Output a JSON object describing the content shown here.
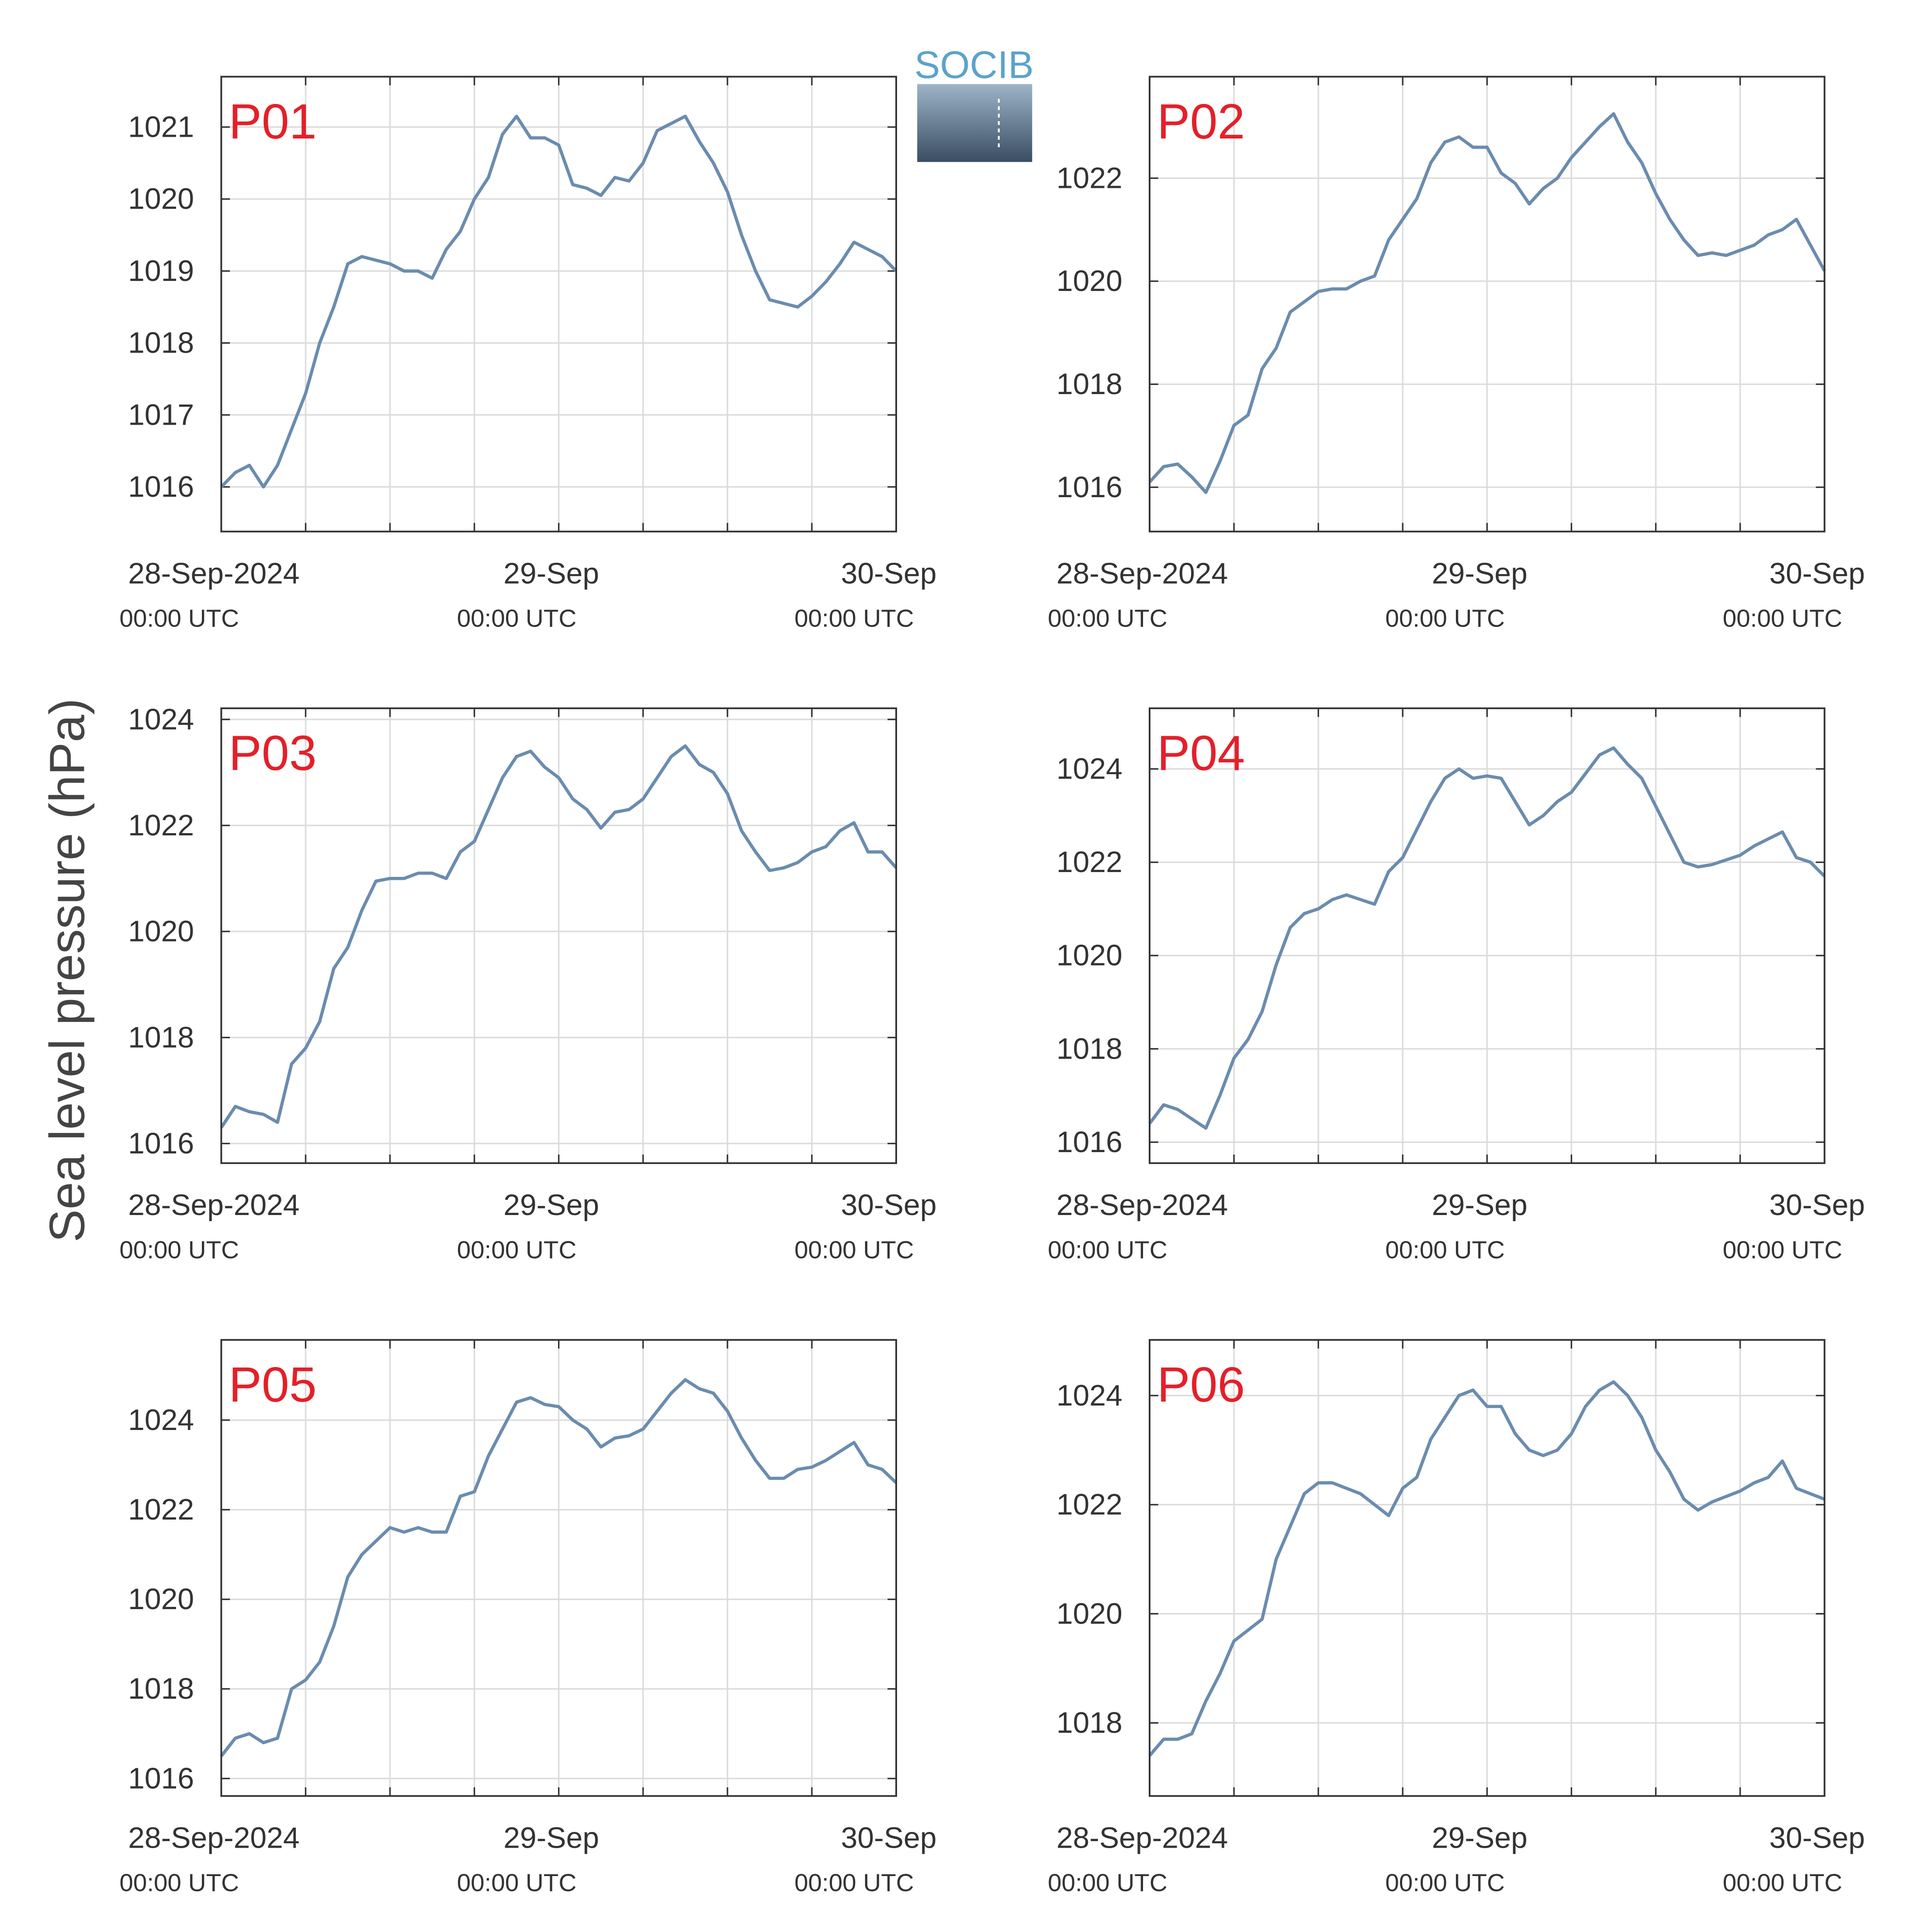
{
  "ylabel": "Sea level pressure (hPa)",
  "logo": "SOCIB",
  "chart_data": [
    {
      "type": "line",
      "title": "P01",
      "color": "#6b8cae",
      "grid": true,
      "x": [
        "2024-09-28T00:00",
        "2024-09-28T01:00",
        "2024-09-28T02:00",
        "2024-09-28T03:00",
        "2024-09-28T04:00",
        "2024-09-28T05:00",
        "2024-09-28T06:00",
        "2024-09-28T07:00",
        "2024-09-28T08:00",
        "2024-09-28T09:00",
        "2024-09-28T10:00",
        "2024-09-28T11:00",
        "2024-09-28T12:00",
        "2024-09-28T13:00",
        "2024-09-28T14:00",
        "2024-09-28T15:00",
        "2024-09-28T16:00",
        "2024-09-28T17:00",
        "2024-09-28T18:00",
        "2024-09-28T19:00",
        "2024-09-28T20:00",
        "2024-09-28T21:00",
        "2024-09-28T22:00",
        "2024-09-28T23:00",
        "2024-09-29T00:00",
        "2024-09-29T01:00",
        "2024-09-29T02:00",
        "2024-09-29T03:00",
        "2024-09-29T04:00",
        "2024-09-29T05:00",
        "2024-09-29T06:00",
        "2024-09-29T07:00",
        "2024-09-29T08:00",
        "2024-09-29T09:00",
        "2024-09-29T10:00",
        "2024-09-29T11:00",
        "2024-09-29T12:00",
        "2024-09-29T13:00",
        "2024-09-29T14:00",
        "2024-09-29T15:00",
        "2024-09-29T16:00",
        "2024-09-29T17:00",
        "2024-09-29T18:00",
        "2024-09-29T19:00",
        "2024-09-29T20:00",
        "2024-09-29T21:00",
        "2024-09-29T22:00",
        "2024-09-29T23:00",
        "2024-09-30T00:00"
      ],
      "values": [
        1016.0,
        1016.2,
        1016.3,
        1016.0,
        1016.3,
        1016.8,
        1017.3,
        1018.0,
        1018.5,
        1019.1,
        1019.2,
        1019.15,
        1019.1,
        1019.0,
        1019.0,
        1018.9,
        1019.3,
        1019.55,
        1020.0,
        1020.3,
        1020.9,
        1021.15,
        1020.85,
        1020.85,
        1020.75,
        1020.2,
        1020.15,
        1020.05,
        1020.3,
        1020.25,
        1020.5,
        1020.95,
        1021.05,
        1021.15,
        1020.8,
        1020.5,
        1020.1,
        1019.5,
        1019.0,
        1018.6,
        1018.55,
        1018.5,
        1018.65,
        1018.85,
        1019.1,
        1019.4,
        1019.3,
        1019.2,
        1019.0
      ],
      "xlim": [
        "2024-09-28T00:00",
        "2024-09-30T00:00"
      ],
      "xticks": [
        {
          "value": "2024-09-28T00:00",
          "label": "28-Sep-2024",
          "sublabel": "00:00 UTC"
        },
        {
          "value": "2024-09-29T00:00",
          "label": "29-Sep",
          "sublabel": "00:00 UTC"
        },
        {
          "value": "2024-09-30T00:00",
          "label": "30-Sep",
          "sublabel": "00:00 UTC"
        }
      ],
      "xminor_ticks": [
        "2024-09-28T06:00",
        "2024-09-28T12:00",
        "2024-09-28T18:00",
        "2024-09-29T06:00",
        "2024-09-29T12:00",
        "2024-09-29T18:00"
      ],
      "ylim": [
        1015.38,
        1021.7
      ],
      "yticks": [
        1016,
        1017,
        1018,
        1019,
        1020,
        1021
      ]
    },
    {
      "type": "line",
      "title": "P02",
      "color": "#6b8cae",
      "grid": true,
      "x": [
        "2024-09-28T00:00",
        "2024-09-28T01:00",
        "2024-09-28T02:00",
        "2024-09-28T03:00",
        "2024-09-28T04:00",
        "2024-09-28T05:00",
        "2024-09-28T06:00",
        "2024-09-28T07:00",
        "2024-09-28T08:00",
        "2024-09-28T09:00",
        "2024-09-28T10:00",
        "2024-09-28T11:00",
        "2024-09-28T12:00",
        "2024-09-28T13:00",
        "2024-09-28T14:00",
        "2024-09-28T15:00",
        "2024-09-28T16:00",
        "2024-09-28T17:00",
        "2024-09-28T18:00",
        "2024-09-28T19:00",
        "2024-09-28T20:00",
        "2024-09-28T21:00",
        "2024-09-28T22:00",
        "2024-09-28T23:00",
        "2024-09-29T00:00",
        "2024-09-29T01:00",
        "2024-09-29T02:00",
        "2024-09-29T03:00",
        "2024-09-29T04:00",
        "2024-09-29T05:00",
        "2024-09-29T06:00",
        "2024-09-29T07:00",
        "2024-09-29T08:00",
        "2024-09-29T09:00",
        "2024-09-29T10:00",
        "2024-09-29T11:00",
        "2024-09-29T12:00",
        "2024-09-29T13:00",
        "2024-09-29T14:00",
        "2024-09-29T15:00",
        "2024-09-29T16:00",
        "2024-09-29T17:00",
        "2024-09-29T18:00",
        "2024-09-29T19:00",
        "2024-09-29T20:00",
        "2024-09-29T21:00",
        "2024-09-29T22:00",
        "2024-09-29T23:00",
        "2024-09-30T00:00"
      ],
      "values": [
        1016.1,
        1016.4,
        1016.45,
        1016.2,
        1015.9,
        1016.5,
        1017.2,
        1017.4,
        1018.3,
        1018.7,
        1019.4,
        1019.6,
        1019.8,
        1019.85,
        1019.85,
        1020.0,
        1020.1,
        1020.8,
        1021.2,
        1021.6,
        1022.3,
        1022.7,
        1022.8,
        1022.6,
        1022.6,
        1022.1,
        1021.9,
        1021.5,
        1021.8,
        1022.0,
        1022.4,
        1022.7,
        1023.0,
        1023.25,
        1022.7,
        1022.3,
        1021.7,
        1021.2,
        1020.8,
        1020.5,
        1020.55,
        1020.5,
        1020.6,
        1020.7,
        1020.9,
        1021.0,
        1021.2,
        1020.7,
        1020.2
      ],
      "xlim": [
        "2024-09-28T00:00",
        "2024-09-30T00:00"
      ],
      "xticks": [
        {
          "value": "2024-09-28T00:00",
          "label": "28-Sep-2024",
          "sublabel": "00:00 UTC"
        },
        {
          "value": "2024-09-29T00:00",
          "label": "29-Sep",
          "sublabel": "00:00 UTC"
        },
        {
          "value": "2024-09-30T00:00",
          "label": "30-Sep",
          "sublabel": "00:00 UTC"
        }
      ],
      "xminor_ticks": [
        "2024-09-28T06:00",
        "2024-09-28T12:00",
        "2024-09-28T18:00",
        "2024-09-29T06:00",
        "2024-09-29T12:00",
        "2024-09-29T18:00"
      ],
      "ylim": [
        1015.14,
        1023.97
      ],
      "yticks": [
        1016,
        1018,
        1020,
        1022
      ]
    },
    {
      "type": "line",
      "title": "P03",
      "color": "#6b8cae",
      "grid": true,
      "x": [
        "2024-09-28T00:00",
        "2024-09-28T01:00",
        "2024-09-28T02:00",
        "2024-09-28T03:00",
        "2024-09-28T04:00",
        "2024-09-28T05:00",
        "2024-09-28T06:00",
        "2024-09-28T07:00",
        "2024-09-28T08:00",
        "2024-09-28T09:00",
        "2024-09-28T10:00",
        "2024-09-28T11:00",
        "2024-09-28T12:00",
        "2024-09-28T13:00",
        "2024-09-28T14:00",
        "2024-09-28T15:00",
        "2024-09-28T16:00",
        "2024-09-28T17:00",
        "2024-09-28T18:00",
        "2024-09-28T19:00",
        "2024-09-28T20:00",
        "2024-09-28T21:00",
        "2024-09-28T22:00",
        "2024-09-28T23:00",
        "2024-09-29T00:00",
        "2024-09-29T01:00",
        "2024-09-29T02:00",
        "2024-09-29T03:00",
        "2024-09-29T04:00",
        "2024-09-29T05:00",
        "2024-09-29T06:00",
        "2024-09-29T07:00",
        "2024-09-29T08:00",
        "2024-09-29T09:00",
        "2024-09-29T10:00",
        "2024-09-29T11:00",
        "2024-09-29T12:00",
        "2024-09-29T13:00",
        "2024-09-29T14:00",
        "2024-09-29T15:00",
        "2024-09-29T16:00",
        "2024-09-29T17:00",
        "2024-09-29T18:00",
        "2024-09-29T19:00",
        "2024-09-29T20:00",
        "2024-09-29T21:00",
        "2024-09-29T22:00",
        "2024-09-29T23:00",
        "2024-09-30T00:00"
      ],
      "values": [
        1016.3,
        1016.7,
        1016.6,
        1016.55,
        1016.4,
        1017.5,
        1017.8,
        1018.3,
        1019.3,
        1019.7,
        1020.4,
        1020.95,
        1021.0,
        1021.0,
        1021.1,
        1021.1,
        1021.0,
        1021.5,
        1021.7,
        1022.3,
        1022.9,
        1023.3,
        1023.4,
        1023.1,
        1022.9,
        1022.5,
        1022.3,
        1021.95,
        1022.25,
        1022.3,
        1022.5,
        1022.9,
        1023.3,
        1023.5,
        1023.15,
        1023.0,
        1022.6,
        1021.9,
        1021.5,
        1021.15,
        1021.2,
        1021.3,
        1021.5,
        1021.6,
        1021.9,
        1022.05,
        1021.5,
        1021.5,
        1021.2
      ],
      "xlim": [
        "2024-09-28T00:00",
        "2024-09-30T00:00"
      ],
      "xticks": [
        {
          "value": "2024-09-28T00:00",
          "label": "28-Sep-2024",
          "sublabel": "00:00 UTC"
        },
        {
          "value": "2024-09-29T00:00",
          "label": "29-Sep",
          "sublabel": "00:00 UTC"
        },
        {
          "value": "2024-09-30T00:00",
          "label": "30-Sep",
          "sublabel": "00:00 UTC"
        }
      ],
      "xminor_ticks": [
        "2024-09-28T06:00",
        "2024-09-28T12:00",
        "2024-09-28T18:00",
        "2024-09-29T06:00",
        "2024-09-29T12:00",
        "2024-09-29T18:00"
      ],
      "ylim": [
        1015.63,
        1024.21
      ],
      "yticks": [
        1016,
        1018,
        1020,
        1022,
        1024
      ]
    },
    {
      "type": "line",
      "title": "P04",
      "color": "#6b8cae",
      "grid": true,
      "x": [
        "2024-09-28T00:00",
        "2024-09-28T01:00",
        "2024-09-28T02:00",
        "2024-09-28T03:00",
        "2024-09-28T04:00",
        "2024-09-28T05:00",
        "2024-09-28T06:00",
        "2024-09-28T07:00",
        "2024-09-28T08:00",
        "2024-09-28T09:00",
        "2024-09-28T10:00",
        "2024-09-28T11:00",
        "2024-09-28T12:00",
        "2024-09-28T13:00",
        "2024-09-28T14:00",
        "2024-09-28T15:00",
        "2024-09-28T16:00",
        "2024-09-28T17:00",
        "2024-09-28T18:00",
        "2024-09-28T19:00",
        "2024-09-28T20:00",
        "2024-09-28T21:00",
        "2024-09-28T22:00",
        "2024-09-28T23:00",
        "2024-09-29T00:00",
        "2024-09-29T01:00",
        "2024-09-29T02:00",
        "2024-09-29T03:00",
        "2024-09-29T04:00",
        "2024-09-29T05:00",
        "2024-09-29T06:00",
        "2024-09-29T07:00",
        "2024-09-29T08:00",
        "2024-09-29T09:00",
        "2024-09-29T10:00",
        "2024-09-29T11:00",
        "2024-09-29T12:00",
        "2024-09-29T13:00",
        "2024-09-29T14:00",
        "2024-09-29T15:00",
        "2024-09-29T16:00",
        "2024-09-29T17:00",
        "2024-09-29T18:00",
        "2024-09-29T19:00",
        "2024-09-29T20:00",
        "2024-09-29T21:00",
        "2024-09-29T22:00",
        "2024-09-29T23:00",
        "2024-09-30T00:00"
      ],
      "values": [
        1016.4,
        1016.8,
        1016.7,
        1016.5,
        1016.3,
        1017.0,
        1017.8,
        1018.2,
        1018.8,
        1019.8,
        1020.6,
        1020.9,
        1021.0,
        1021.2,
        1021.3,
        1021.2,
        1021.1,
        1021.8,
        1022.1,
        1022.7,
        1023.3,
        1023.8,
        1024.0,
        1023.8,
        1023.85,
        1023.8,
        1023.3,
        1022.8,
        1023.0,
        1023.3,
        1023.5,
        1023.9,
        1024.3,
        1024.45,
        1024.1,
        1023.8,
        1023.2,
        1022.6,
        1022.0,
        1021.9,
        1021.95,
        1022.05,
        1022.15,
        1022.35,
        1022.5,
        1022.65,
        1022.1,
        1022.0,
        1021.7
      ],
      "xlim": [
        "2024-09-28T00:00",
        "2024-09-30T00:00"
      ],
      "xticks": [
        {
          "value": "2024-09-28T00:00",
          "label": "28-Sep-2024",
          "sublabel": "00:00 UTC"
        },
        {
          "value": "2024-09-29T00:00",
          "label": "29-Sep",
          "sublabel": "00:00 UTC"
        },
        {
          "value": "2024-09-30T00:00",
          "label": "30-Sep",
          "sublabel": "00:00 UTC"
        }
      ],
      "xminor_ticks": [
        "2024-09-28T06:00",
        "2024-09-28T12:00",
        "2024-09-28T18:00",
        "2024-09-29T06:00",
        "2024-09-29T12:00",
        "2024-09-29T18:00"
      ],
      "ylim": [
        1015.55,
        1025.3
      ],
      "yticks": [
        1016,
        1018,
        1020,
        1022,
        1024
      ]
    },
    {
      "type": "line",
      "title": "P05",
      "color": "#6b8cae",
      "grid": true,
      "x": [
        "2024-09-28T00:00",
        "2024-09-28T01:00",
        "2024-09-28T02:00",
        "2024-09-28T03:00",
        "2024-09-28T04:00",
        "2024-09-28T05:00",
        "2024-09-28T06:00",
        "2024-09-28T07:00",
        "2024-09-28T08:00",
        "2024-09-28T09:00",
        "2024-09-28T10:00",
        "2024-09-28T11:00",
        "2024-09-28T12:00",
        "2024-09-28T13:00",
        "2024-09-28T14:00",
        "2024-09-28T15:00",
        "2024-09-28T16:00",
        "2024-09-28T17:00",
        "2024-09-28T18:00",
        "2024-09-28T19:00",
        "2024-09-28T20:00",
        "2024-09-28T21:00",
        "2024-09-28T22:00",
        "2024-09-28T23:00",
        "2024-09-29T00:00",
        "2024-09-29T01:00",
        "2024-09-29T02:00",
        "2024-09-29T03:00",
        "2024-09-29T04:00",
        "2024-09-29T05:00",
        "2024-09-29T06:00",
        "2024-09-29T07:00",
        "2024-09-29T08:00",
        "2024-09-29T09:00",
        "2024-09-29T10:00",
        "2024-09-29T11:00",
        "2024-09-29T12:00",
        "2024-09-29T13:00",
        "2024-09-29T14:00",
        "2024-09-29T15:00",
        "2024-09-29T16:00",
        "2024-09-29T17:00",
        "2024-09-29T18:00",
        "2024-09-29T19:00",
        "2024-09-29T20:00",
        "2024-09-29T21:00",
        "2024-09-29T22:00",
        "2024-09-29T23:00",
        "2024-09-30T00:00"
      ],
      "values": [
        1016.5,
        1016.9,
        1017.0,
        1016.8,
        1016.9,
        1018.0,
        1018.2,
        1018.6,
        1019.4,
        1020.5,
        1021.0,
        1021.3,
        1021.6,
        1021.5,
        1021.6,
        1021.5,
        1021.5,
        1022.3,
        1022.4,
        1023.2,
        1023.8,
        1024.4,
        1024.5,
        1024.35,
        1024.3,
        1024.0,
        1023.8,
        1023.4,
        1023.6,
        1023.65,
        1023.8,
        1024.2,
        1024.6,
        1024.9,
        1024.7,
        1024.6,
        1024.2,
        1023.6,
        1023.1,
        1022.7,
        1022.7,
        1022.9,
        1022.95,
        1023.1,
        1023.3,
        1023.5,
        1023.0,
        1022.9,
        1022.6
      ],
      "xlim": [
        "2024-09-28T00:00",
        "2024-09-30T00:00"
      ],
      "xticks": [
        {
          "value": "2024-09-28T00:00",
          "label": "28-Sep-2024",
          "sublabel": "00:00 UTC"
        },
        {
          "value": "2024-09-29T00:00",
          "label": "29-Sep",
          "sublabel": "00:00 UTC"
        },
        {
          "value": "2024-09-30T00:00",
          "label": "30-Sep",
          "sublabel": "00:00 UTC"
        }
      ],
      "xminor_ticks": [
        "2024-09-28T06:00",
        "2024-09-28T12:00",
        "2024-09-28T18:00",
        "2024-09-29T06:00",
        "2024-09-29T12:00",
        "2024-09-29T18:00"
      ],
      "ylim": [
        1015.61,
        1025.79
      ],
      "yticks": [
        1016,
        1018,
        1020,
        1022,
        1024
      ]
    },
    {
      "type": "line",
      "title": "P06",
      "color": "#6b8cae",
      "grid": true,
      "x": [
        "2024-09-28T00:00",
        "2024-09-28T01:00",
        "2024-09-28T02:00",
        "2024-09-28T03:00",
        "2024-09-28T04:00",
        "2024-09-28T05:00",
        "2024-09-28T06:00",
        "2024-09-28T07:00",
        "2024-09-28T08:00",
        "2024-09-28T09:00",
        "2024-09-28T10:00",
        "2024-09-28T11:00",
        "2024-09-28T12:00",
        "2024-09-28T13:00",
        "2024-09-28T14:00",
        "2024-09-28T15:00",
        "2024-09-28T16:00",
        "2024-09-28T17:00",
        "2024-09-28T18:00",
        "2024-09-28T19:00",
        "2024-09-28T20:00",
        "2024-09-28T21:00",
        "2024-09-28T22:00",
        "2024-09-28T23:00",
        "2024-09-29T00:00",
        "2024-09-29T01:00",
        "2024-09-29T02:00",
        "2024-09-29T03:00",
        "2024-09-29T04:00",
        "2024-09-29T05:00",
        "2024-09-29T06:00",
        "2024-09-29T07:00",
        "2024-09-29T08:00",
        "2024-09-29T09:00",
        "2024-09-29T10:00",
        "2024-09-29T11:00",
        "2024-09-29T12:00",
        "2024-09-29T13:00",
        "2024-09-29T14:00",
        "2024-09-29T15:00",
        "2024-09-29T16:00",
        "2024-09-29T17:00",
        "2024-09-29T18:00",
        "2024-09-29T19:00",
        "2024-09-29T20:00",
        "2024-09-29T21:00",
        "2024-09-29T22:00",
        "2024-09-29T23:00",
        "2024-09-30T00:00"
      ],
      "values": [
        1017.4,
        1017.7,
        1017.7,
        1017.8,
        1018.4,
        1018.9,
        1019.5,
        1019.7,
        1019.9,
        1021.0,
        1021.6,
        1022.2,
        1022.4,
        1022.4,
        1022.3,
        1022.2,
        1022.0,
        1021.8,
        1022.3,
        1022.5,
        1023.2,
        1023.6,
        1024.0,
        1024.1,
        1023.8,
        1023.8,
        1023.3,
        1023.0,
        1022.9,
        1023.0,
        1023.3,
        1023.8,
        1024.1,
        1024.25,
        1024.0,
        1023.6,
        1023.0,
        1022.6,
        1022.1,
        1021.9,
        1022.05,
        1022.15,
        1022.25,
        1022.4,
        1022.5,
        1022.8,
        1022.3,
        1022.2,
        1022.1
      ],
      "xlim": [
        "2024-09-28T00:00",
        "2024-09-30T00:00"
      ],
      "xticks": [
        {
          "value": "2024-09-28T00:00",
          "label": "28-Sep-2024",
          "sublabel": "00:00 UTC"
        },
        {
          "value": "2024-09-29T00:00",
          "label": "29-Sep",
          "sublabel": "00:00 UTC"
        },
        {
          "value": "2024-09-30T00:00",
          "label": "30-Sep",
          "sublabel": "00:00 UTC"
        }
      ],
      "xminor_ticks": [
        "2024-09-28T06:00",
        "2024-09-28T12:00",
        "2024-09-28T18:00",
        "2024-09-29T06:00",
        "2024-09-29T12:00",
        "2024-09-29T18:00"
      ],
      "ylim": [
        1016.66,
        1025.02
      ],
      "yticks": [
        1018,
        1020,
        1022,
        1024
      ]
    }
  ]
}
